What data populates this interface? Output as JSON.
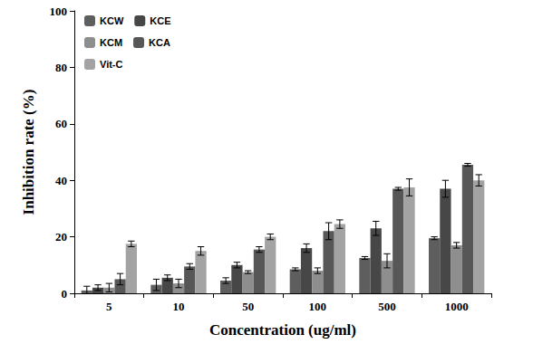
{
  "chart_data": {
    "type": "bar",
    "x_label": "Concentration (ug/ml)",
    "y_label": "Inhibition rate (%)",
    "categories": [
      "5",
      "10",
      "50",
      "100",
      "500",
      "1000"
    ],
    "series": [
      {
        "name": "KCW",
        "color": "#5e5e5e",
        "values": [
          1,
          3,
          4.5,
          8.5,
          12.5,
          19.5
        ],
        "errors": [
          1.5,
          2,
          1,
          0.5,
          0.5,
          0.5
        ]
      },
      {
        "name": "KCE",
        "color": "#474747",
        "values": [
          2,
          5.5,
          10,
          16,
          23,
          37
        ],
        "errors": [
          1,
          1,
          1,
          1.5,
          2.5,
          3
        ]
      },
      {
        "name": "KCM",
        "color": "#8e8e8e",
        "values": [
          2,
          3.5,
          7.5,
          8,
          11.5,
          17
        ],
        "errors": [
          1.5,
          1.5,
          0.5,
          1,
          2.5,
          1
        ]
      },
      {
        "name": "KCA",
        "color": "#575757",
        "values": [
          5,
          9.5,
          15.5,
          22,
          37,
          45.5
        ],
        "errors": [
          2,
          1,
          1,
          3,
          0.5,
          0.5
        ]
      },
      {
        "name": "Vit-C",
        "color": "#a3a3a3",
        "values": [
          17.5,
          15,
          20,
          24.5,
          37.5,
          40
        ],
        "errors": [
          1,
          1.5,
          1,
          1.5,
          3,
          2
        ]
      }
    ],
    "ylim": [
      0,
      100
    ],
    "yticks": [
      0,
      20,
      40,
      60,
      80,
      100
    ],
    "grid": false,
    "legend": "upper left"
  }
}
